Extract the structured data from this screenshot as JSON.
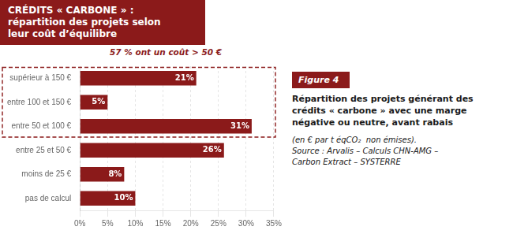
{
  "chart_data": {
    "type": "bar",
    "orientation": "horizontal",
    "title": [
      "CRÉDITS « CARBONE » :",
      "répartition des projets selon",
      "leur coût d’équilibre"
    ],
    "categories": [
      "supérieur à 150 €",
      "entre 100 et 150 €",
      "entre 50 et 100 €",
      "entre 25 et 50 €",
      "moins de 25 €",
      "pas de calcul"
    ],
    "values": [
      21,
      5,
      31,
      26,
      8,
      10
    ],
    "value_labels": [
      "21%",
      "5%",
      "31%",
      "26%",
      "8%",
      "10%"
    ],
    "data_labels": true,
    "color": "#8B1A1A",
    "xlim": [
      0,
      35
    ],
    "xticks": [
      {
        "value": 0,
        "label": "0%"
      },
      {
        "value": 5,
        "label": "5%"
      },
      {
        "value": 10,
        "label": "10%"
      },
      {
        "value": 15,
        "label": "15%"
      },
      {
        "value": 20,
        "label": "20%"
      },
      {
        "value": 25,
        "label": "25%"
      },
      {
        "value": 30,
        "label": "30%"
      },
      {
        "value": 35,
        "label": "35%"
      }
    ],
    "grid": true,
    "annotations": [
      "57 % ont un coût > 50 €",
      "Figure 4",
      "Répartition des projets générant des\ncrédits « carbone » avec une marge\nnégative ou neutre, avant rabais",
      "(en € par t éqCO₂  non émises).\nSource : Arvalis – Calculs CHN-AMG –\nCarbon Extract – SYSTERRE"
    ]
  }
}
